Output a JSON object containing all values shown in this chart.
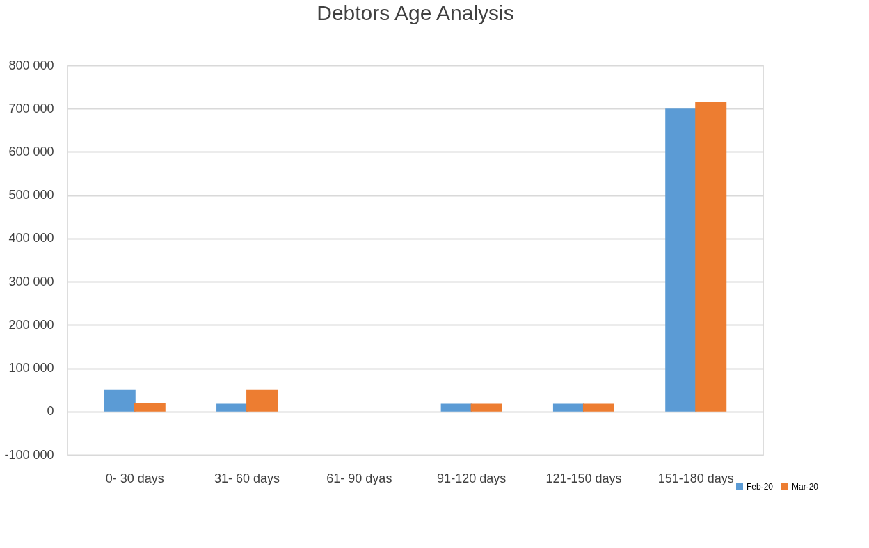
{
  "chart_data": {
    "type": "bar",
    "title": "Debtors Age Analysis",
    "categories": [
      "0- 30 days",
      "31- 60 days",
      "61- 90 dyas",
      "91-120 days",
      "121-150 days",
      "151-180 days"
    ],
    "series": [
      {
        "name": "Feb-20",
        "color": "#5b9bd5",
        "values": [
          50000,
          18000,
          0,
          18000,
          18000,
          700000
        ]
      },
      {
        "name": "Mar-20",
        "color": "#ed7d31",
        "values": [
          20000,
          50000,
          0,
          18000,
          18000,
          715000
        ]
      }
    ],
    "ylim": [
      -100000,
      800000
    ],
    "yticks": [
      {
        "value": -100000,
        "label": "-100 000"
      },
      {
        "value": 0,
        "label": "0"
      },
      {
        "value": 100000,
        "label": "100 000"
      },
      {
        "value": 200000,
        "label": "200 000"
      },
      {
        "value": 300000,
        "label": "300 000"
      },
      {
        "value": 400000,
        "label": "400 000"
      },
      {
        "value": 500000,
        "label": "500 000"
      },
      {
        "value": 600000,
        "label": "600 000"
      },
      {
        "value": 700000,
        "label": "700 000"
      },
      {
        "value": 800000,
        "label": "800 000"
      }
    ],
    "grid": "y",
    "legend": "bottom right"
  }
}
